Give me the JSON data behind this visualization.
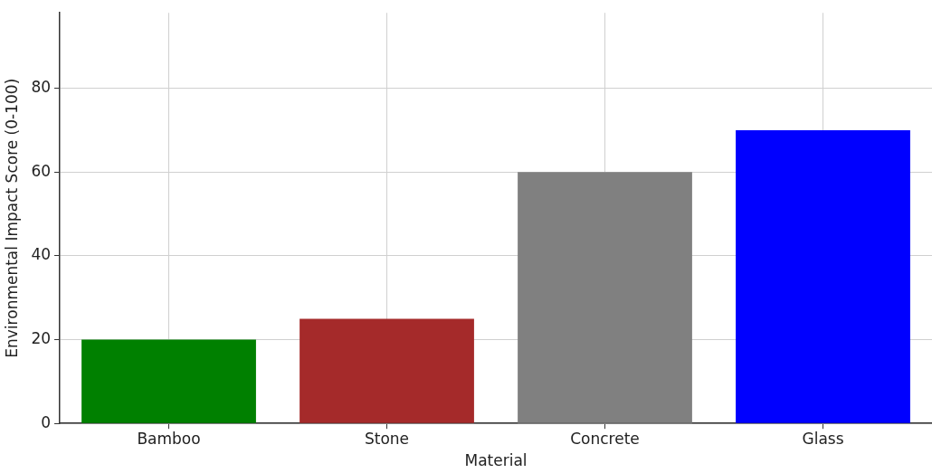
{
  "chart_data": {
    "type": "bar",
    "xlabel": "Material",
    "ylabel": "Environmental Impact Score (0-100)",
    "categories": [
      "Bamboo",
      "Stone",
      "Concrete",
      "Glass"
    ],
    "values": [
      20,
      25,
      60,
      70
    ],
    "colors": [
      "#008000",
      "#a52a2a",
      "#808080",
      "#0000ff"
    ],
    "ylim": [
      0,
      98
    ],
    "yticks": [
      0,
      20,
      40,
      60,
      80
    ],
    "grid": true
  }
}
